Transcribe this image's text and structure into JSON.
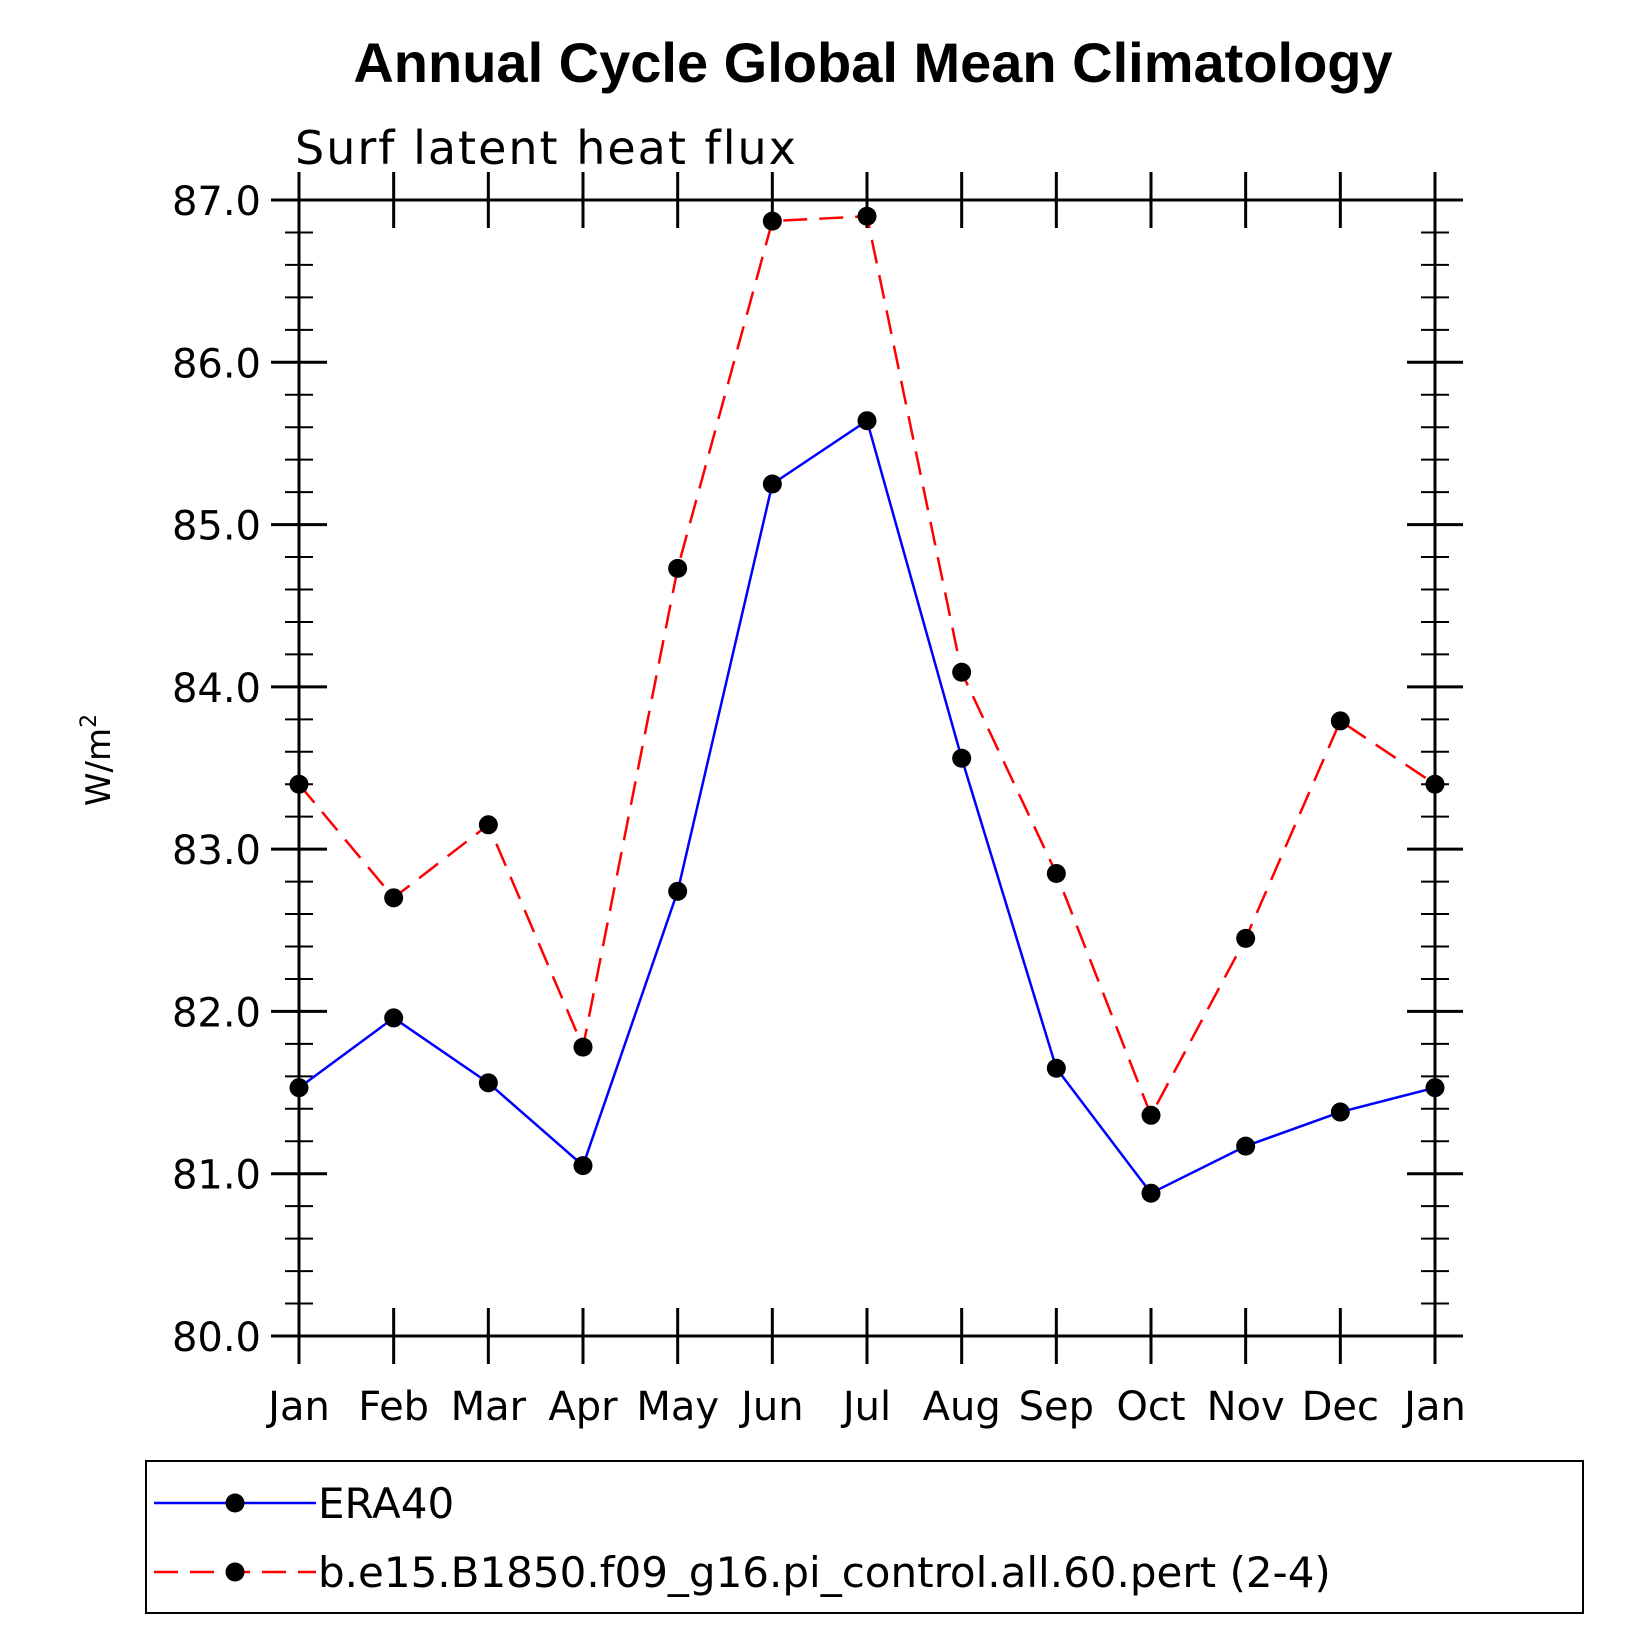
{
  "chart_data": {
    "type": "line",
    "title": "Annual Cycle Global Mean Climatology",
    "subtitle": "Surf latent heat flux",
    "ylabel": "W/m",
    "ylabel_superscript": "2",
    "categories": [
      "Jan",
      "Feb",
      "Mar",
      "Apr",
      "May",
      "Jun",
      "Jul",
      "Aug",
      "Sep",
      "Oct",
      "Nov",
      "Dec",
      "Jan"
    ],
    "ylim": [
      80.0,
      87.0
    ],
    "yticks": [
      "80.0",
      "81.0",
      "82.0",
      "83.0",
      "84.0",
      "85.0",
      "86.0",
      "87.0"
    ],
    "grid": false,
    "legend_position": "bottom",
    "series": [
      {
        "name": "ERA40",
        "color": "#0000ff",
        "line_style": "solid",
        "values": [
          81.53,
          81.96,
          81.56,
          81.05,
          82.74,
          85.25,
          85.64,
          83.56,
          81.65,
          80.88,
          81.17,
          81.38,
          81.53
        ]
      },
      {
        "name": "b.e15.B1850.f09_g16.pi_control.all.60.pert (2-4)",
        "color": "#ff0000",
        "line_style": "dashed",
        "values": [
          83.4,
          82.7,
          83.15,
          81.78,
          84.73,
          86.87,
          86.9,
          84.09,
          82.85,
          81.36,
          82.45,
          83.79,
          83.4
        ]
      }
    ]
  }
}
